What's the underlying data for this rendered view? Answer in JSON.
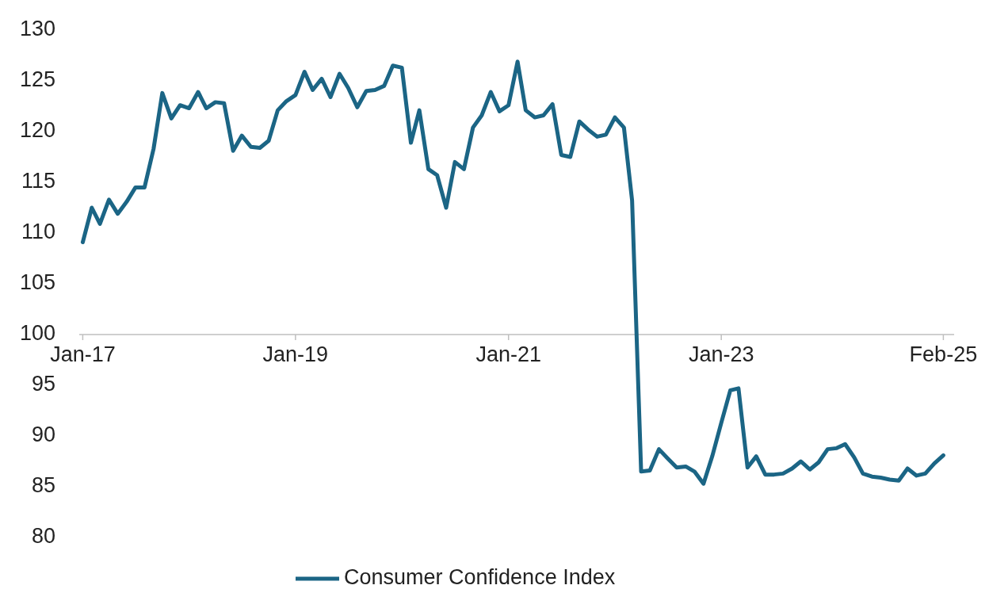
{
  "chart_data": {
    "type": "line",
    "legend": "bottom",
    "grid": false,
    "marker": "none",
    "line_style": "solid",
    "ylim": [
      80,
      130
    ],
    "yticks": [
      80,
      85,
      90,
      95,
      100,
      105,
      110,
      115,
      120,
      125,
      130
    ],
    "xlim": [
      "2016-12-20",
      "2025-03-10"
    ],
    "xticks": [
      {
        "value": "2017-01",
        "label": "Jan-17"
      },
      {
        "value": "2019-01",
        "label": "Jan-19"
      },
      {
        "value": "2021-01",
        "label": "Jan-21"
      },
      {
        "value": "2023-01",
        "label": "Jan-23"
      },
      {
        "value": "2025-02",
        "label": "Feb-25"
      }
    ],
    "x": [
      "2017-01",
      "2017-02",
      "2017-03",
      "2017-04",
      "2017-05",
      "2017-06",
      "2017-07",
      "2017-08",
      "2017-09",
      "2017-10",
      "2017-11",
      "2017-12",
      "2018-01",
      "2018-02",
      "2018-03",
      "2018-04",
      "2018-05",
      "2018-06",
      "2018-07",
      "2018-08",
      "2018-09",
      "2018-10",
      "2018-11",
      "2018-12",
      "2019-01",
      "2019-02",
      "2019-03",
      "2019-04",
      "2019-05",
      "2019-06",
      "2019-07",
      "2019-08",
      "2019-09",
      "2019-10",
      "2019-11",
      "2019-12",
      "2020-01",
      "2020-02",
      "2020-03",
      "2020-04",
      "2020-05",
      "2020-06",
      "2020-07",
      "2020-08",
      "2020-09",
      "2020-10",
      "2020-11",
      "2020-12",
      "2021-01",
      "2021-02",
      "2021-03",
      "2021-04",
      "2021-05",
      "2021-06",
      "2021-07",
      "2021-08",
      "2021-09",
      "2021-10",
      "2021-11",
      "2021-12",
      "2022-01",
      "2022-02",
      "2022-03",
      "2022-04",
      "2022-05",
      "2022-06",
      "2022-07",
      "2022-08",
      "2022-09",
      "2022-10",
      "2022-11",
      "2022-12",
      "2023-01",
      "2023-02",
      "2023-03",
      "2023-04",
      "2023-05",
      "2023-06",
      "2023-07",
      "2023-08",
      "2023-09",
      "2023-10",
      "2023-11",
      "2023-12",
      "2024-01",
      "2024-02",
      "2024-03",
      "2024-04",
      "2024-05",
      "2024-06",
      "2024-07",
      "2024-08",
      "2024-09",
      "2024-10",
      "2024-11",
      "2024-12",
      "2025-01",
      "2025-02"
    ],
    "series": [
      {
        "name": "Consumer Confidence Index",
        "color": "#1b6585",
        "values": [
          109.1,
          112.5,
          110.9,
          113.3,
          111.9,
          113.1,
          114.5,
          114.5,
          118.3,
          123.8,
          121.3,
          122.6,
          122.3,
          123.9,
          122.3,
          122.9,
          122.8,
          118.1,
          119.6,
          118.5,
          118.4,
          119.1,
          122.1,
          123.0,
          123.6,
          125.9,
          124.1,
          125.2,
          123.4,
          125.7,
          124.3,
          122.4,
          124.0,
          124.1,
          124.5,
          126.5,
          126.3,
          118.9,
          122.1,
          116.3,
          115.7,
          112.5,
          117.0,
          116.3,
          120.4,
          121.6,
          123.9,
          122.0,
          122.6,
          126.9,
          122.1,
          121.4,
          121.6,
          122.7,
          117.7,
          117.5,
          121.0,
          120.2,
          119.5,
          119.7,
          121.4,
          120.4,
          113.2,
          86.5,
          86.6,
          88.7,
          87.8,
          86.9,
          87.0,
          86.5,
          85.3,
          88.0,
          91.3,
          94.5,
          94.7,
          86.9,
          88.0,
          86.2,
          86.2,
          86.3,
          86.8,
          87.5,
          86.7,
          87.4,
          88.7,
          88.8,
          89.2,
          87.9,
          86.3,
          86.0,
          85.9,
          85.7,
          85.6,
          86.8,
          86.1,
          86.3,
          87.3,
          88.1
        ]
      }
    ]
  }
}
